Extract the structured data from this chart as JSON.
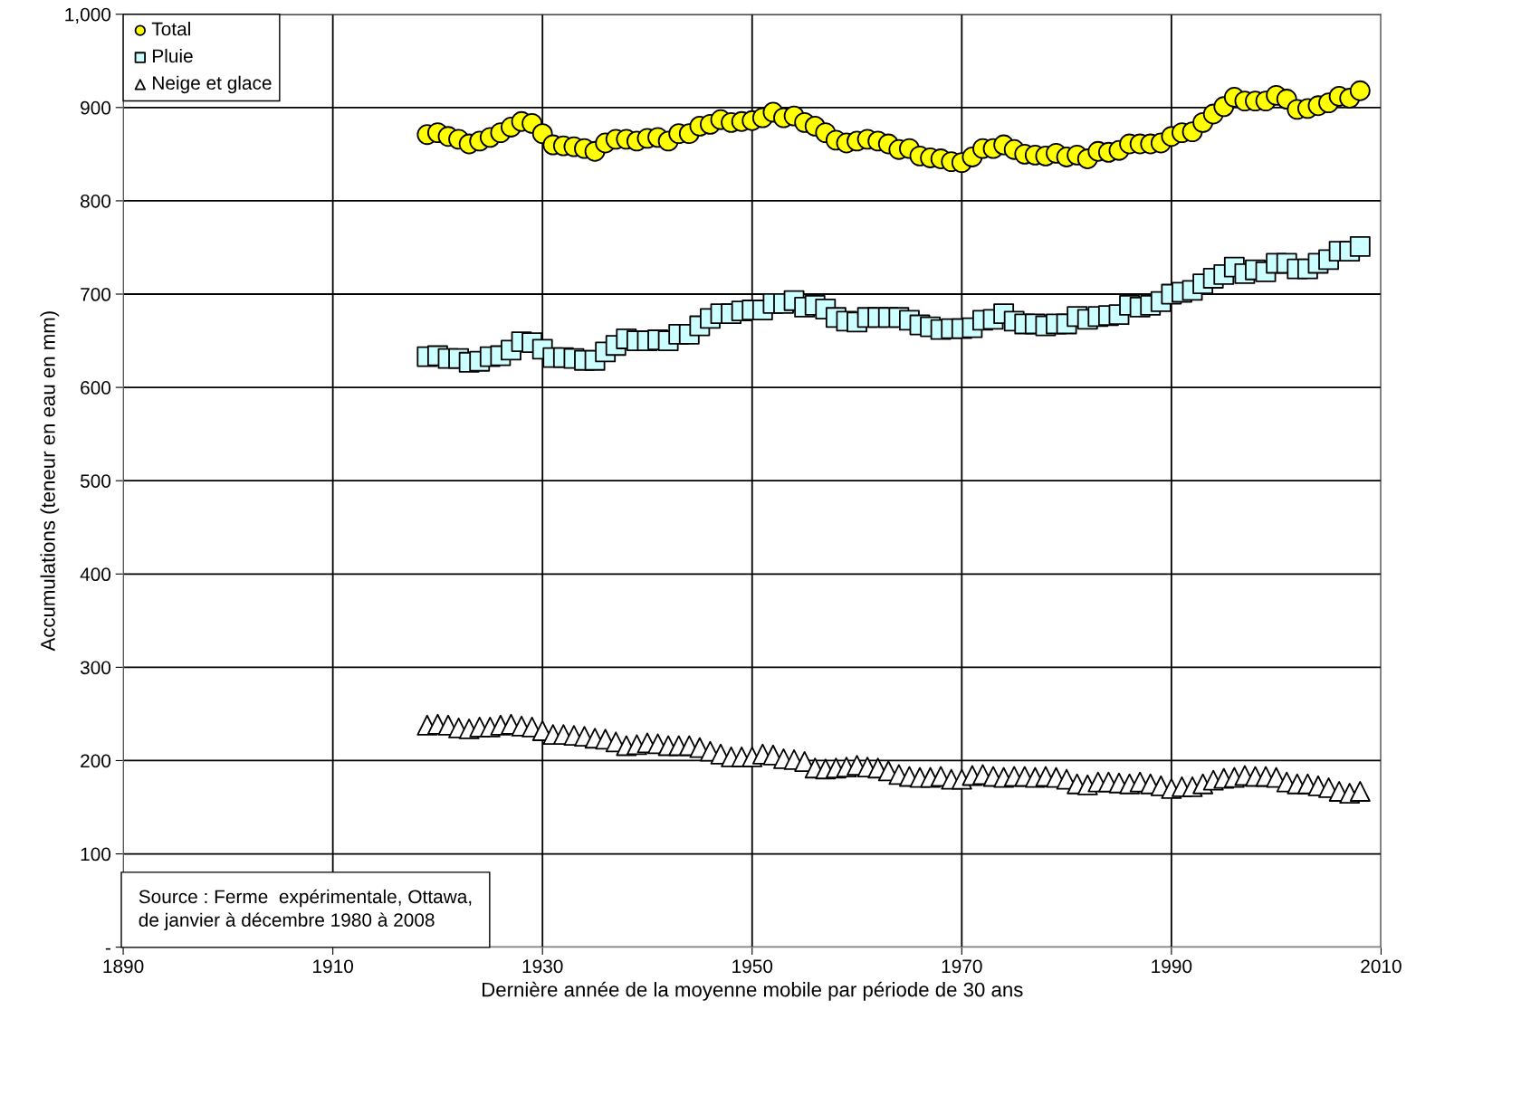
{
  "chart_data": {
    "type": "scatter",
    "xlabel": "Dernière année de la moyenne mobile par période de 30 ans",
    "ylabel": "Accumulations (teneur en eau en mm)",
    "annotations": [
      "Source : Ferme  expérimentale, Ottawa,\nde janvier à décembre 1980 à 2008"
    ],
    "x": [
      1919,
      1920,
      1921,
      1922,
      1923,
      1924,
      1925,
      1926,
      1927,
      1928,
      1929,
      1930,
      1931,
      1932,
      1933,
      1934,
      1935,
      1936,
      1937,
      1938,
      1939,
      1940,
      1941,
      1942,
      1943,
      1944,
      1945,
      1946,
      1947,
      1948,
      1949,
      1950,
      1951,
      1952,
      1953,
      1954,
      1955,
      1956,
      1957,
      1958,
      1959,
      1960,
      1961,
      1962,
      1963,
      1964,
      1965,
      1966,
      1967,
      1968,
      1969,
      1970,
      1971,
      1972,
      1973,
      1974,
      1975,
      1976,
      1977,
      1978,
      1979,
      1980,
      1981,
      1982,
      1983,
      1984,
      1985,
      1986,
      1987,
      1988,
      1989,
      1990,
      1991,
      1992,
      1993,
      1994,
      1995,
      1996,
      1997,
      1998,
      1999,
      2000,
      2001,
      2002,
      2003,
      2004,
      2005,
      2006,
      2007,
      2008
    ],
    "series": [
      {
        "name": "Total",
        "color": "#ffff00",
        "marker": "circle",
        "values": [
          871,
          873,
          869,
          866,
          861,
          864,
          868,
          873,
          879,
          885,
          883,
          872,
          860,
          859,
          858,
          856,
          853,
          862,
          866,
          866,
          864,
          867,
          868,
          864,
          872,
          872,
          880,
          882,
          887,
          884,
          885,
          886,
          889,
          895,
          889,
          891,
          884,
          880,
          873,
          865,
          862,
          864,
          866,
          864,
          861,
          855,
          856,
          848,
          846,
          845,
          842,
          841,
          847,
          856,
          856,
          860,
          855,
          850,
          849,
          848,
          851,
          847,
          849,
          845,
          853,
          852,
          854,
          861,
          861,
          861,
          862,
          869,
          873,
          874,
          884,
          893,
          901,
          911,
          907,
          907,
          907,
          913,
          909,
          898,
          899,
          902,
          905,
          912,
          910,
          918
        ]
      },
      {
        "name": "Pluie",
        "color": "#ccffff",
        "marker": "square",
        "values": [
          633,
          634,
          631,
          631,
          627,
          628,
          633,
          634,
          640,
          649,
          648,
          641,
          632,
          632,
          631,
          629,
          629,
          638,
          645,
          652,
          650,
          650,
          651,
          650,
          657,
          657,
          666,
          674,
          679,
          679,
          682,
          683,
          683,
          690,
          690,
          693,
          686,
          688,
          684,
          675,
          671,
          670,
          675,
          675,
          675,
          675,
          672,
          667,
          665,
          662,
          663,
          663,
          664,
          672,
          673,
          679,
          671,
          668,
          668,
          666,
          668,
          668,
          676,
          673,
          676,
          677,
          678,
          688,
          686,
          688,
          692,
          700,
          702,
          704,
          711,
          717,
          721,
          729,
          722,
          726,
          724,
          733,
          733,
          727,
          727,
          733,
          737,
          746,
          746,
          751
        ]
      },
      {
        "name": "Neige et glace",
        "color": "#ffffff",
        "marker": "triangle",
        "values": [
          238,
          239,
          238,
          235,
          234,
          236,
          236,
          238,
          239,
          237,
          236,
          232,
          228,
          228,
          227,
          226,
          224,
          223,
          220,
          216,
          217,
          219,
          218,
          216,
          216,
          216,
          214,
          210,
          207,
          204,
          204,
          204,
          207,
          206,
          202,
          201,
          199,
          192,
          191,
          192,
          193,
          195,
          193,
          192,
          189,
          185,
          183,
          182,
          182,
          183,
          180,
          180,
          184,
          185,
          183,
          182,
          183,
          183,
          182,
          183,
          182,
          180,
          175,
          174,
          177,
          177,
          176,
          175,
          177,
          175,
          173,
          170,
          172,
          172,
          175,
          179,
          181,
          182,
          184,
          183,
          183,
          182,
          177,
          175,
          175,
          173,
          171,
          167,
          165,
          167
        ]
      }
    ],
    "xlim": [
      1890,
      2010
    ],
    "xticks": [
      1890,
      1910,
      1930,
      1950,
      1970,
      1990,
      2010
    ],
    "ylim": [
      0,
      1000
    ],
    "yticks": [
      {
        "value": 0,
        "label": "-"
      },
      100,
      200,
      300,
      400,
      500,
      600,
      700,
      800,
      900,
      {
        "value": 1000,
        "label": "1,000"
      }
    ],
    "grid": true,
    "legend": "top left"
  }
}
